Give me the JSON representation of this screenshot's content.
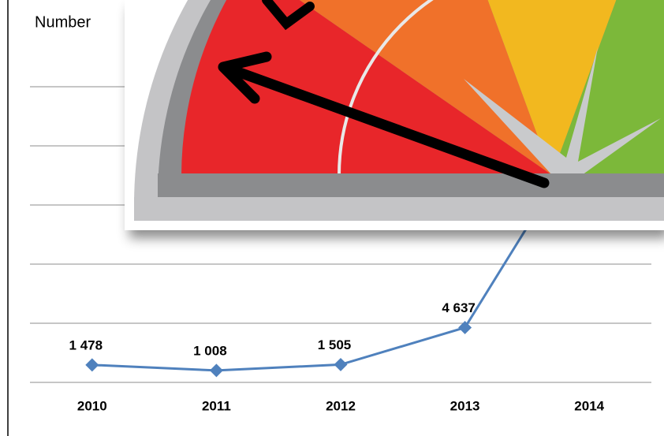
{
  "chart_data": {
    "type": "line",
    "title": "Number",
    "categories": [
      "2010",
      "2011",
      "2012",
      "2013",
      "2014"
    ],
    "series": [
      {
        "name": null,
        "color": "#4f81bd",
        "values": [
          1478,
          1008,
          1505,
          4637,
          21600
        ],
        "value_labels": [
          "1 478",
          "1 008",
          "1 505",
          "4 637",
          null
        ]
      }
    ],
    "ylim": [
      0,
      25000
    ],
    "yticks": [
      0,
      5000,
      10000,
      15000,
      20000,
      25000
    ],
    "grid": true
  }
}
